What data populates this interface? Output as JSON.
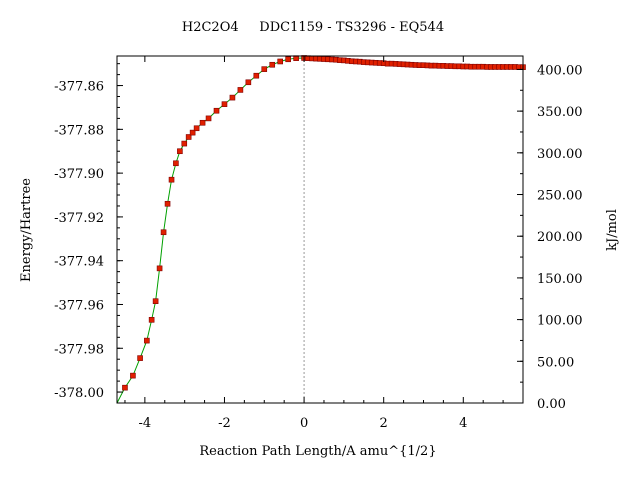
{
  "chart_data": {
    "type": "line",
    "title": "H2C2O4     DDC1159 - TS3296 - EQ544",
    "xlabel": "Reaction Path Length/A amu^{1/2}",
    "ylabel": "Energy/Hartree",
    "ylabel_right": "kJ/mol",
    "xlim": [
      -4.7,
      5.5
    ],
    "ylim": [
      -378.005,
      -377.8465
    ],
    "ylim_right": [
      0.0,
      416.1
    ],
    "x_ticks": [
      -4,
      -2,
      0,
      2,
      4
    ],
    "x_tick_labels": [
      "-4",
      "-2",
      "0",
      "2",
      "4"
    ],
    "y_ticks": [
      -378.0,
      -377.98,
      -377.96,
      -377.94,
      -377.92,
      -377.9,
      -377.88,
      -377.86
    ],
    "y_tick_labels": [
      "-378.00",
      "-377.98",
      "-377.96",
      "-377.94",
      "-377.92",
      "-377.90",
      "-377.88",
      "-377.86"
    ],
    "y_right_ticks": [
      0,
      50,
      100,
      150,
      200,
      250,
      300,
      350,
      400
    ],
    "y_right_tick_labels": [
      "0.00",
      "50.00",
      "100.00",
      "150.00",
      "200.00",
      "250.00",
      "300.00",
      "350.00",
      "400.00"
    ],
    "ts_line_x": 0,
    "line_color": "#00a000",
    "marker_color": "#e02000",
    "marker_edge_color": "#800000",
    "ts_line_color": "#999999",
    "series": [
      {
        "x": [
          -4.5,
          -4.3,
          -4.12,
          -3.95,
          -3.83,
          -3.73,
          -3.63,
          -3.53,
          -3.43,
          -3.33,
          -3.22,
          -3.12,
          -3.01,
          -2.9,
          -2.8,
          -2.7,
          -2.55,
          -2.4,
          -2.2,
          -2.0,
          -1.8,
          -1.6,
          -1.4,
          -1.2,
          -1.0,
          -0.8,
          -0.6,
          -0.4,
          -0.2,
          0.0,
          0.1,
          0.2,
          0.3,
          0.4,
          0.5,
          0.6,
          0.7,
          0.8,
          0.9,
          1.0,
          1.1,
          1.2,
          1.3,
          1.4,
          1.5,
          1.6,
          1.7,
          1.8,
          1.9,
          2.0,
          2.1,
          2.2,
          2.3,
          2.4,
          2.5,
          2.6,
          2.7,
          2.8,
          2.9,
          3.0,
          3.1,
          3.2,
          3.3,
          3.4,
          3.5,
          3.6,
          3.7,
          3.8,
          3.9,
          4.0,
          4.1,
          4.2,
          4.3,
          4.4,
          4.5,
          4.6,
          4.7,
          4.8,
          4.9,
          5.0,
          5.1,
          5.2,
          5.3,
          5.4,
          5.5
        ],
        "y": [
          -377.998,
          -377.9925,
          -377.9845,
          -377.9765,
          -377.967,
          -377.9585,
          -377.9435,
          -377.927,
          -377.914,
          -377.903,
          -377.8955,
          -377.89,
          -377.8865,
          -377.8835,
          -377.8815,
          -377.8795,
          -377.877,
          -377.875,
          -377.8715,
          -377.8685,
          -377.8655,
          -377.862,
          -377.8585,
          -377.8555,
          -377.8525,
          -377.8505,
          -377.849,
          -377.848,
          -377.8475,
          -377.8474,
          -377.8475,
          -377.8476,
          -377.8477,
          -377.8478,
          -377.8479,
          -377.848,
          -377.8481,
          -377.8482,
          -377.8484,
          -377.8485,
          -377.8487,
          -377.8489,
          -377.849,
          -377.8491,
          -377.8493,
          -377.8494,
          -377.8495,
          -377.8496,
          -377.8497,
          -377.8498,
          -377.85,
          -377.85,
          -377.8501,
          -377.8502,
          -377.8503,
          -377.8504,
          -377.8505,
          -377.8506,
          -377.8507,
          -377.8507,
          -377.8508,
          -377.8509,
          -377.8509,
          -377.851,
          -377.851,
          -377.8511,
          -377.8511,
          -377.8512,
          -377.8512,
          -377.8513,
          -377.8513,
          -377.8514,
          -377.8514,
          -377.8514,
          -377.8514,
          -377.8515,
          -377.8515,
          -377.8515,
          -377.8515,
          -377.8515,
          -377.8515,
          -377.8515,
          -377.8515,
          -377.8516,
          -377.8516
        ]
      }
    ]
  }
}
